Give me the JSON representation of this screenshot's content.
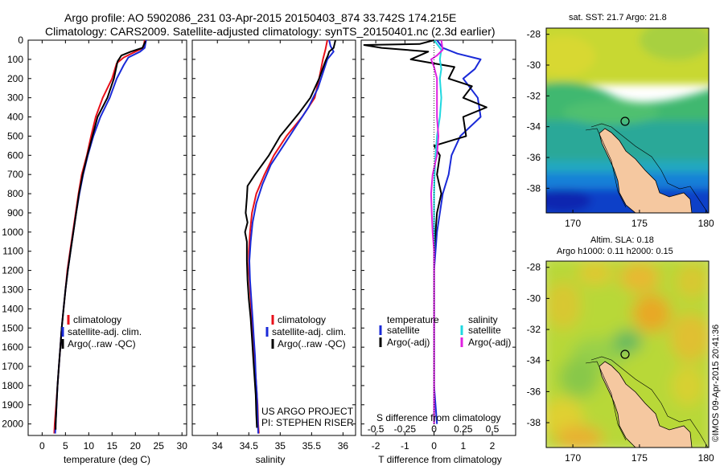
{
  "header": {
    "line1": "Argo profile: AO 5902086_231 03-Apr-2015 20150403_874 33.742S 174.215E",
    "line2": "Climatology: CARS2009. Satellite-adjusted climatology: synTS_20150401.nc (2.3d earlier)"
  },
  "colors": {
    "climatology": "#e8101a",
    "satellite": "#1a2ad8",
    "argo": "#000000",
    "satellite_s": "#20d8e0",
    "argo_s": "#e020e0",
    "land": "#f5c8a0"
  },
  "depth_axis": {
    "ticks": [
      0,
      100,
      200,
      300,
      400,
      500,
      600,
      700,
      800,
      900,
      1000,
      1100,
      1200,
      1300,
      1400,
      1500,
      1600,
      1700,
      1800,
      1900,
      2000
    ],
    "range": [
      0,
      2060
    ]
  },
  "chart_data": [
    {
      "type": "line",
      "xlabel": "temperature (deg C)",
      "xlim": [
        -3,
        31
      ],
      "xticks": [
        0,
        5,
        10,
        15,
        20,
        25,
        30
      ],
      "legend": [
        "climatology",
        "satellite-adj. clim.",
        "Argo(..raw -QC)"
      ],
      "series": [
        {
          "name": "climatology",
          "color_key": "climatology",
          "points": [
            [
              22,
              0
            ],
            [
              21.7,
              40
            ],
            [
              20,
              60
            ],
            [
              17.5,
              90
            ],
            [
              16,
              120
            ],
            [
              15,
              200
            ],
            [
              13,
              300
            ],
            [
              11.5,
              400
            ],
            [
              10.5,
              500
            ],
            [
              9.6,
              600
            ],
            [
              8.5,
              700
            ],
            [
              7.8,
              800
            ],
            [
              7.2,
              900
            ],
            [
              6.6,
              1000
            ],
            [
              6,
              1100
            ],
            [
              5.4,
              1200
            ],
            [
              5,
              1300
            ],
            [
              4.6,
              1400
            ],
            [
              4.2,
              1500
            ],
            [
              3.9,
              1600
            ],
            [
              3.6,
              1700
            ],
            [
              3.3,
              1800
            ],
            [
              3,
              1900
            ],
            [
              2.7,
              2000
            ],
            [
              2.6,
              2050
            ]
          ]
        },
        {
          "name": "satellite-adj. clim.",
          "color_key": "satellite",
          "points": [
            [
              22.3,
              0
            ],
            [
              22,
              40
            ],
            [
              21,
              60
            ],
            [
              18.5,
              90
            ],
            [
              17.5,
              130
            ],
            [
              16,
              200
            ],
            [
              14.5,
              300
            ],
            [
              12.5,
              400
            ],
            [
              11,
              500
            ],
            [
              9.8,
              600
            ],
            [
              8.8,
              700
            ],
            [
              8,
              800
            ],
            [
              7.3,
              900
            ],
            [
              6.7,
              1000
            ],
            [
              6.1,
              1100
            ],
            [
              5.5,
              1200
            ],
            [
              5,
              1300
            ],
            [
              4.6,
              1400
            ],
            [
              4.2,
              1500
            ],
            [
              3.9,
              1600
            ],
            [
              3.6,
              1700
            ],
            [
              3.3,
              1800
            ],
            [
              3.1,
              1900
            ],
            [
              2.9,
              2000
            ],
            [
              2.8,
              2050
            ]
          ]
        },
        {
          "name": "Argo(..raw -QC)",
          "color_key": "argo",
          "points": [
            [
              22.2,
              5
            ],
            [
              21.5,
              40
            ],
            [
              19,
              60
            ],
            [
              17,
              80
            ],
            [
              16.2,
              110
            ],
            [
              15.4,
              200
            ],
            [
              14,
              300
            ],
            [
              11.9,
              400
            ],
            [
              10.8,
              500
            ],
            [
              9.7,
              600
            ],
            [
              8.7,
              700
            ],
            [
              7.9,
              800
            ],
            [
              7.3,
              900
            ],
            [
              6.7,
              1000
            ],
            [
              6.1,
              1100
            ],
            [
              5.5,
              1200
            ],
            [
              5,
              1300
            ],
            [
              4.6,
              1400
            ],
            [
              4.2,
              1500
            ],
            [
              3.9,
              1600
            ],
            [
              3.6,
              1700
            ],
            [
              3.3,
              1800
            ],
            [
              3.1,
              1900
            ],
            [
              2.9,
              2000
            ],
            [
              2.9,
              2030
            ]
          ]
        }
      ]
    },
    {
      "type": "line",
      "xlabel": "salinity",
      "xlim": [
        33.6,
        36.2
      ],
      "xticks": [
        34,
        34.5,
        35,
        35.5,
        36
      ],
      "xticklabels": [
        "34",
        "34.5",
        "35",
        "35.5",
        "36"
      ],
      "legend": [
        "climatology",
        "satellite-adj. clim.",
        "Argo(..raw -QC)"
      ],
      "annotation": [
        "US ARGO PROJECT",
        "PI: STEPHEN RISER"
      ],
      "series": [
        {
          "name": "climatology",
          "color_key": "climatology",
          "points": [
            [
              35.75,
              0
            ],
            [
              35.72,
              50
            ],
            [
              35.68,
              100
            ],
            [
              35.62,
              200
            ],
            [
              35.55,
              300
            ],
            [
              35.35,
              400
            ],
            [
              35.1,
              500
            ],
            [
              34.9,
              600
            ],
            [
              34.75,
              700
            ],
            [
              34.62,
              800
            ],
            [
              34.55,
              900
            ],
            [
              34.52,
              1000
            ],
            [
              34.5,
              1100
            ],
            [
              34.5,
              1200
            ],
            [
              34.52,
              1300
            ],
            [
              34.54,
              1400
            ],
            [
              34.56,
              1500
            ],
            [
              34.58,
              1600
            ],
            [
              34.6,
              1700
            ],
            [
              34.62,
              1800
            ],
            [
              34.64,
              1900
            ],
            [
              34.65,
              2000
            ],
            [
              34.66,
              2050
            ]
          ]
        },
        {
          "name": "satellite-adj. clim.",
          "color_key": "satellite",
          "points": [
            [
              35.78,
              0
            ],
            [
              35.8,
              30
            ],
            [
              35.85,
              60
            ],
            [
              35.75,
              100
            ],
            [
              35.7,
              150
            ],
            [
              35.6,
              250
            ],
            [
              35.45,
              350
            ],
            [
              35.25,
              450
            ],
            [
              35.05,
              550
            ],
            [
              34.85,
              650
            ],
            [
              34.72,
              750
            ],
            [
              34.62,
              850
            ],
            [
              34.56,
              950
            ],
            [
              34.53,
              1050
            ],
            [
              34.51,
              1150
            ],
            [
              34.52,
              1250
            ],
            [
              34.54,
              1350
            ],
            [
              34.56,
              1450
            ],
            [
              34.58,
              1550
            ],
            [
              34.6,
              1650
            ],
            [
              34.61,
              1750
            ],
            [
              34.63,
              1850
            ],
            [
              34.64,
              1950
            ],
            [
              34.65,
              2050
            ]
          ]
        },
        {
          "name": "Argo(..raw -QC)",
          "color_key": "argo",
          "points": [
            [
              35.88,
              0
            ],
            [
              35.85,
              40
            ],
            [
              35.78,
              60
            ],
            [
              35.76,
              80
            ],
            [
              35.72,
              110
            ],
            [
              35.62,
              200
            ],
            [
              35.48,
              300
            ],
            [
              35.3,
              380
            ],
            [
              35.0,
              500
            ],
            [
              34.82,
              600
            ],
            [
              34.6,
              700
            ],
            [
              34.48,
              760
            ],
            [
              34.47,
              820
            ],
            [
              34.45,
              900
            ],
            [
              34.48,
              950
            ],
            [
              34.44,
              1000
            ],
            [
              34.47,
              1050
            ],
            [
              34.47,
              1150
            ],
            [
              34.48,
              1250
            ],
            [
              34.5,
              1350
            ],
            [
              34.53,
              1450
            ],
            [
              34.55,
              1550
            ],
            [
              34.57,
              1650
            ],
            [
              34.59,
              1750
            ],
            [
              34.61,
              1850
            ],
            [
              34.62,
              1950
            ],
            [
              34.63,
              2020
            ]
          ]
        }
      ]
    },
    {
      "type": "line",
      "xlabel": "T difference from climatology",
      "xlim": [
        -2.5,
        2.8
      ],
      "xticks": [
        -2,
        -1,
        0,
        1,
        2
      ],
      "xticklabels": [
        "-2",
        "-1",
        "0",
        "1",
        "2"
      ],
      "top_label": "S difference from climatology",
      "s_ticks": [
        -0.5,
        -0.25,
        0,
        0.25,
        0.5
      ],
      "s_ticklabels": [
        "-0.5",
        "-0.25",
        "0",
        "0.25",
        "0.5"
      ],
      "legend_t_title": "temperature",
      "legend_s_title": "salinity",
      "legend": [
        "satellite",
        "Argo(-adj)",
        "satellite",
        "Argo(-adj)"
      ],
      "series": [
        {
          "name": "satellite",
          "color_key": "satellite",
          "points": [
            [
              0.1,
              0
            ],
            [
              0.3,
              40
            ],
            [
              0.8,
              70
            ],
            [
              1.6,
              100
            ],
            [
              1.4,
              150
            ],
            [
              1.0,
              200
            ],
            [
              1.5,
              300
            ],
            [
              1.6,
              400
            ],
            [
              0.9,
              500
            ],
            [
              0.6,
              600
            ],
            [
              0.5,
              700
            ],
            [
              0.3,
              800
            ],
            [
              0.2,
              900
            ],
            [
              0.1,
              1000
            ],
            [
              0.05,
              1100
            ],
            [
              0,
              1200
            ],
            [
              0,
              1300
            ],
            [
              0,
              1400
            ],
            [
              0,
              1500
            ],
            [
              0,
              1600
            ],
            [
              0,
              1700
            ],
            [
              0,
              1800
            ],
            [
              0.05,
              1900
            ],
            [
              0.1,
              2000
            ]
          ]
        },
        {
          "name": "Argo(-adj)",
          "color_key": "argo",
          "points": [
            [
              0,
              0
            ],
            [
              -0.5,
              20
            ],
            [
              -2.4,
              25
            ],
            [
              -1.8,
              40
            ],
            [
              -0.2,
              60
            ],
            [
              -0.8,
              100
            ],
            [
              0.7,
              140
            ],
            [
              0.5,
              200
            ],
            [
              1.3,
              240
            ],
            [
              1.0,
              300
            ],
            [
              1.8,
              350
            ],
            [
              1.0,
              400
            ],
            [
              1.1,
              500
            ],
            [
              0,
              550
            ],
            [
              0.2,
              600
            ],
            [
              0.1,
              700
            ],
            [
              0.25,
              800
            ],
            [
              0.1,
              900
            ],
            [
              0.05,
              1000
            ],
            [
              0,
              1100
            ],
            [
              0,
              1200
            ],
            [
              0,
              1300
            ],
            [
              0,
              1500
            ],
            [
              0,
              1700
            ],
            [
              0,
              1900
            ],
            [
              0,
              2000
            ]
          ]
        },
        {
          "name": "satellite",
          "color_key": "satellite_s",
          "points": [
            [
              0,
              0
            ],
            [
              0.25,
              50
            ],
            [
              0.2,
              100
            ],
            [
              0.25,
              150
            ],
            [
              0.2,
              200
            ],
            [
              0.25,
              300
            ],
            [
              0.2,
              400
            ],
            [
              0.1,
              500
            ],
            [
              0.05,
              600
            ],
            [
              0.02,
              700
            ],
            [
              0,
              800
            ],
            [
              0,
              1000
            ],
            [
              0,
              1300
            ],
            [
              0,
              1600
            ],
            [
              0,
              1900
            ],
            [
              0,
              2000
            ]
          ]
        },
        {
          "name": "Argo(-adj)",
          "color_key": "argo_s",
          "points": [
            [
              0.25,
              0
            ],
            [
              0.3,
              50
            ],
            [
              0.1,
              80
            ],
            [
              -0.1,
              100
            ],
            [
              0,
              140
            ],
            [
              0.1,
              200
            ],
            [
              0.1,
              300
            ],
            [
              0.1,
              400
            ],
            [
              0.15,
              500
            ],
            [
              0.1,
              600
            ],
            [
              -0.05,
              700
            ],
            [
              -0.1,
              800
            ],
            [
              -0.08,
              900
            ],
            [
              -0.05,
              1000
            ],
            [
              0,
              1100
            ],
            [
              0,
              1300
            ],
            [
              0,
              1500
            ],
            [
              0,
              1700
            ],
            [
              0,
              1900
            ],
            [
              0,
              2000
            ]
          ]
        }
      ]
    }
  ],
  "maps": [
    {
      "title": "sat. SST: 21.7 Argo: 21.8",
      "lat_ticks": [
        "-28",
        "-30",
        "-32",
        "-34",
        "-36",
        "-38"
      ],
      "lon_ticks": [
        "170",
        "175",
        "180"
      ],
      "type": "sst"
    },
    {
      "title_line1": "Altim. SLA: 0.18",
      "title_line2": "Argo h1000: 0.11 h2000: 0.15",
      "lat_ticks": [
        "-28",
        "-30",
        "-32",
        "-34",
        "-36",
        "-38"
      ],
      "lon_ticks": [
        "170",
        "175",
        "180"
      ],
      "type": "sla"
    }
  ],
  "side_stamp": "©IMOS 09-Apr-2015 20:41:36"
}
